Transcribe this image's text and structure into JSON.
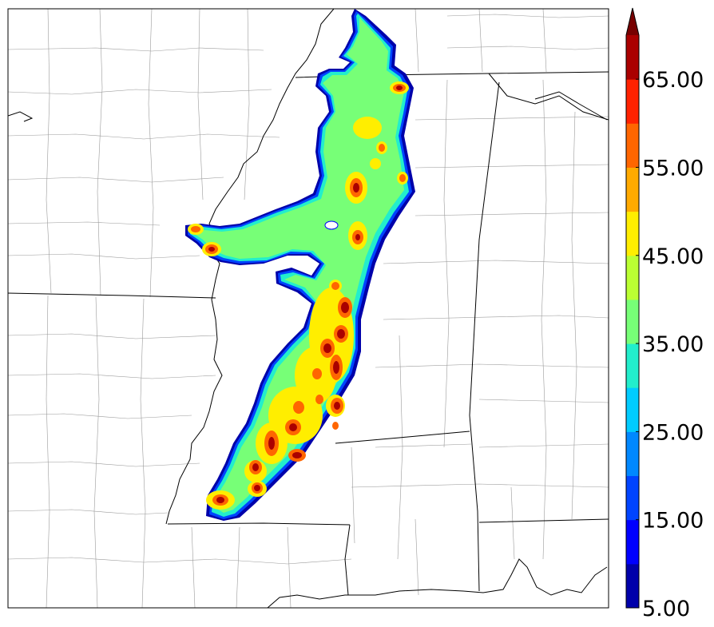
{
  "colorbar": {
    "tick_labels": [
      "5.00",
      "15.00",
      "25.00",
      "35.00",
      "45.00",
      "55.00",
      "65.00"
    ],
    "levels": [
      5,
      10,
      15,
      20,
      25,
      30,
      35,
      40,
      45,
      50,
      55,
      60,
      65,
      70
    ],
    "extend": "max",
    "colors": [
      "#0000aa",
      "#0000ff",
      "#0044ff",
      "#0088ff",
      "#00ccff",
      "#22eecc",
      "#77ff77",
      "#bbff33",
      "#ffee00",
      "#ffaa00",
      "#ff6600",
      "#ff2200",
      "#aa0000",
      "#770000"
    ]
  },
  "map": {
    "background": "#ffffff",
    "state_line_color": "#000000",
    "county_line_color": "#9a9a9a",
    "coast_line_color": "#000000"
  }
}
